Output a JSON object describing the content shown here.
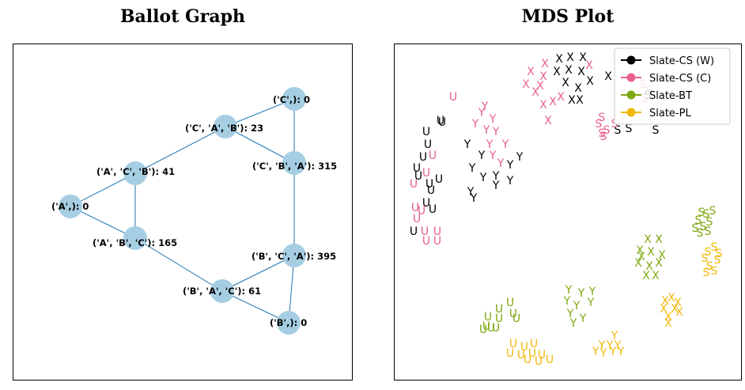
{
  "titles": {
    "left": "Ballot Graph",
    "right": "MDS Plot"
  },
  "ballot_graph": {
    "nodes": [
      {
        "id": "C",
        "label": "('C',): 0"
      },
      {
        "id": "CAB",
        "label": "('C', 'A', 'B'): 23"
      },
      {
        "id": "CBA",
        "label": "('C', 'B', 'A'): 315"
      },
      {
        "id": "ACB",
        "label": "('A', 'C', 'B'): 41"
      },
      {
        "id": "A",
        "label": "('A',): 0"
      },
      {
        "id": "ABC",
        "label": "('A', 'B', 'C'): 165"
      },
      {
        "id": "BCA",
        "label": "('B', 'C', 'A'): 395"
      },
      {
        "id": "BAC",
        "label": "('B', 'A', 'C'): 61"
      },
      {
        "id": "B",
        "label": "('B',): 0"
      }
    ],
    "edges": [
      [
        "C",
        "CAB"
      ],
      [
        "C",
        "CBA"
      ],
      [
        "CAB",
        "CBA"
      ],
      [
        "CAB",
        "ACB"
      ],
      [
        "CBA",
        "BCA"
      ],
      [
        "ACB",
        "A"
      ],
      [
        "ACB",
        "ABC"
      ],
      [
        "A",
        "ABC"
      ],
      [
        "ABC",
        "BAC"
      ],
      [
        "BAC",
        "BCA"
      ],
      [
        "BAC",
        "B"
      ],
      [
        "BCA",
        "B"
      ]
    ],
    "node_color": "#a6cee3",
    "edge_color": "#1f77b4"
  },
  "mds_plot": {
    "legend": [
      {
        "label": "Slate-CS (W)",
        "color": "#000000"
      },
      {
        "label": "Slate-CS (C)",
        "color": "#e8608a"
      },
      {
        "label": "Slate-BT",
        "color": "#7ea911"
      },
      {
        "label": "Slate-PL",
        "color": "#f2b70b"
      }
    ],
    "markers": [
      "X",
      "Y",
      "U",
      "S"
    ]
  }
}
